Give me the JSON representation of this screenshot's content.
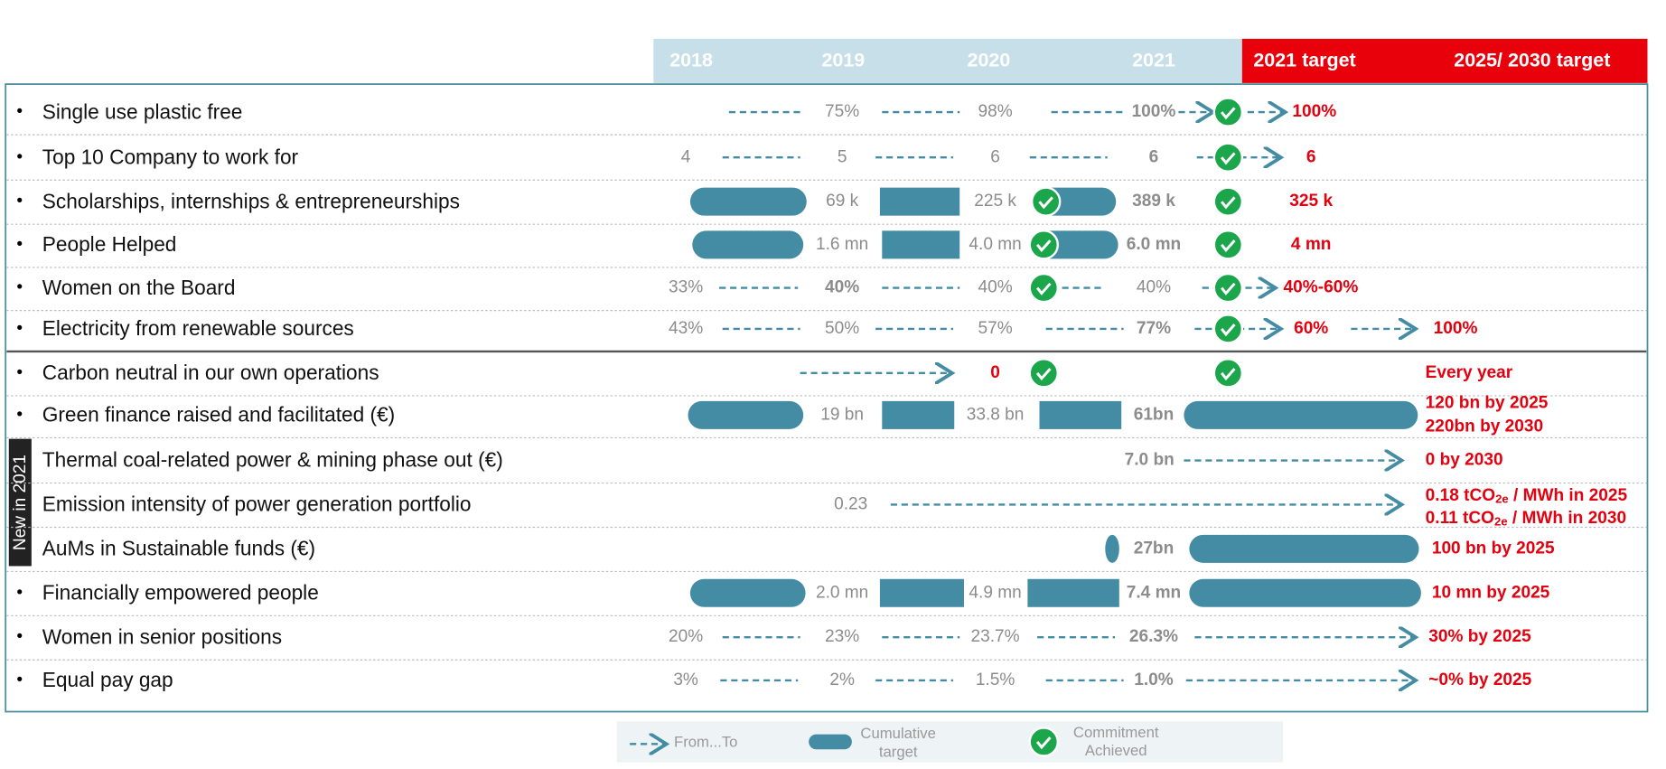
{
  "header": {
    "columns": [
      "2018",
      "2019",
      "2020",
      "2021",
      "2021 target",
      "2025/ 2030 target"
    ]
  },
  "side_label": "New in 2021",
  "rows": [
    {
      "label": "Single use plastic free",
      "cells": [
        "75%",
        "98%",
        "100%",
        "100%"
      ]
    },
    {
      "label": "Top 10 Company to work for",
      "cells": [
        "4",
        "5",
        "6",
        "6",
        "6"
      ]
    },
    {
      "label": "Scholarships, internships & entrepreneurships",
      "cells": [
        "69 k",
        "225 k",
        "389 k",
        "325 k"
      ]
    },
    {
      "label": "People Helped",
      "cells": [
        "1.6 mn",
        "4.0 mn",
        "6.0 mn",
        "4 mn"
      ]
    },
    {
      "label": "Women on the Board",
      "cells": [
        "33%",
        "40%",
        "40%",
        "40%",
        "40%-60%"
      ]
    },
    {
      "label": "Electricity from renewable sources",
      "cells": [
        "43%",
        "50%",
        "57%",
        "77%",
        "60%",
        "100%"
      ]
    },
    {
      "label": "Carbon neutral in our own operations",
      "cells": [
        "0",
        "Every year"
      ]
    },
    {
      "label": "Green finance raised and facilitated (€)",
      "cells": [
        "19 bn",
        "33.8 bn",
        "61bn",
        "120 bn by 2025",
        "220bn by 2030"
      ]
    },
    {
      "label": "Thermal coal-related power & mining phase out (€)",
      "cells": [
        "7.0 bn",
        "0 by 2030"
      ]
    },
    {
      "label": "Emission intensity of power generation portfolio",
      "cells": [
        "0.23",
        [
          "0.18 tCO",
          "2e",
          " / MWh in 2025"
        ],
        [
          "0.11 tCO",
          "2e",
          " / MWh in 2030"
        ]
      ]
    },
    {
      "label": "AuMs in Sustainable funds (€)",
      "cells": [
        "27bn",
        "100 bn by 2025"
      ]
    },
    {
      "label": "Financially empowered people",
      "cells": [
        "2.0 mn",
        "4.9 mn",
        "7.4 mn",
        "10 mn by 2025"
      ]
    },
    {
      "label": "Women in senior positions",
      "cells": [
        "20%",
        "23%",
        "23.7%",
        "26.3%",
        "30% by 2025"
      ]
    },
    {
      "label": "Equal pay gap",
      "cells": [
        "3%",
        "2%",
        "1.5%",
        "1.0%",
        "~0% by 2025"
      ]
    }
  ],
  "legend": {
    "from_to": "From...To",
    "cumulative": [
      "Cumulative",
      "target"
    ],
    "achieved": [
      "Commitment",
      "Achieved"
    ]
  }
}
